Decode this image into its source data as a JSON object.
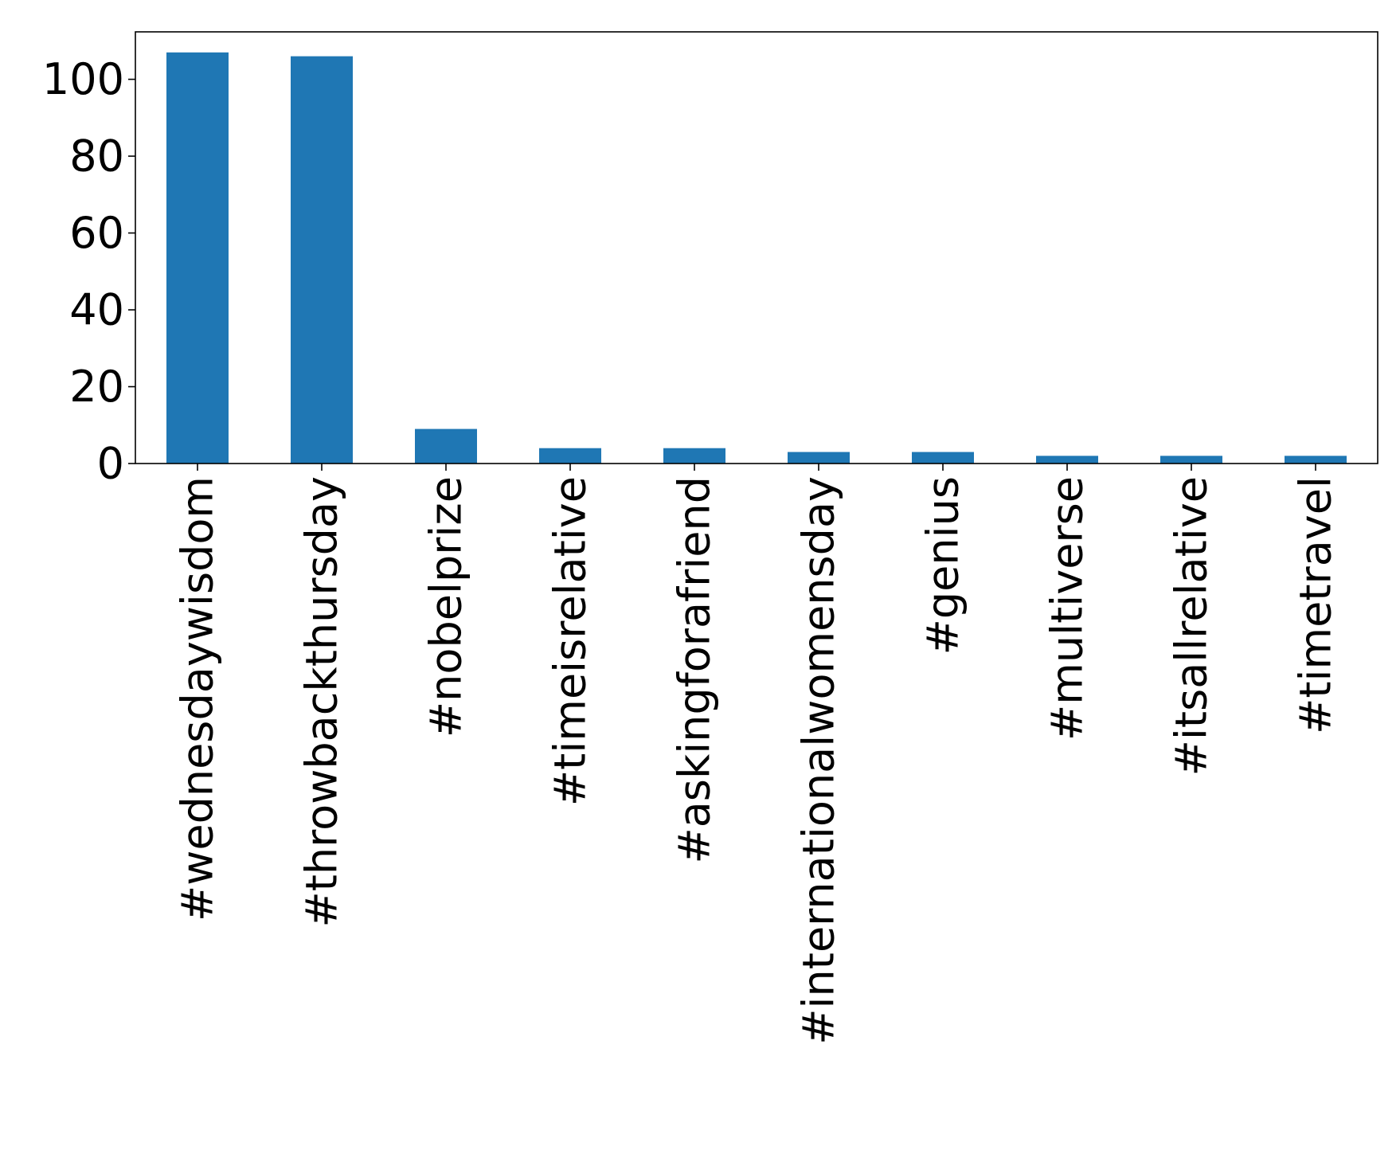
{
  "chart_data": {
    "type": "bar",
    "title": "",
    "xlabel": "",
    "ylabel": "",
    "categories": [
      "#wednesdaywisdom",
      "#throwbackthursday",
      "#nobelprize",
      "#timeisrelative",
      "#askingforafriend",
      "#internationalwomensday",
      "#genius",
      "#multiverse",
      "#itsallrelative",
      "#timetravel"
    ],
    "values": [
      107,
      106,
      9,
      4,
      4,
      3,
      3,
      2,
      2,
      2
    ],
    "ylim": [
      0,
      112.35
    ],
    "yticks": [
      0,
      20,
      40,
      60,
      80,
      100
    ],
    "grid": false,
    "legend": "none",
    "colors": {
      "bar": "#1f77b4",
      "axis": "#000000",
      "background": "#ffffff"
    }
  }
}
